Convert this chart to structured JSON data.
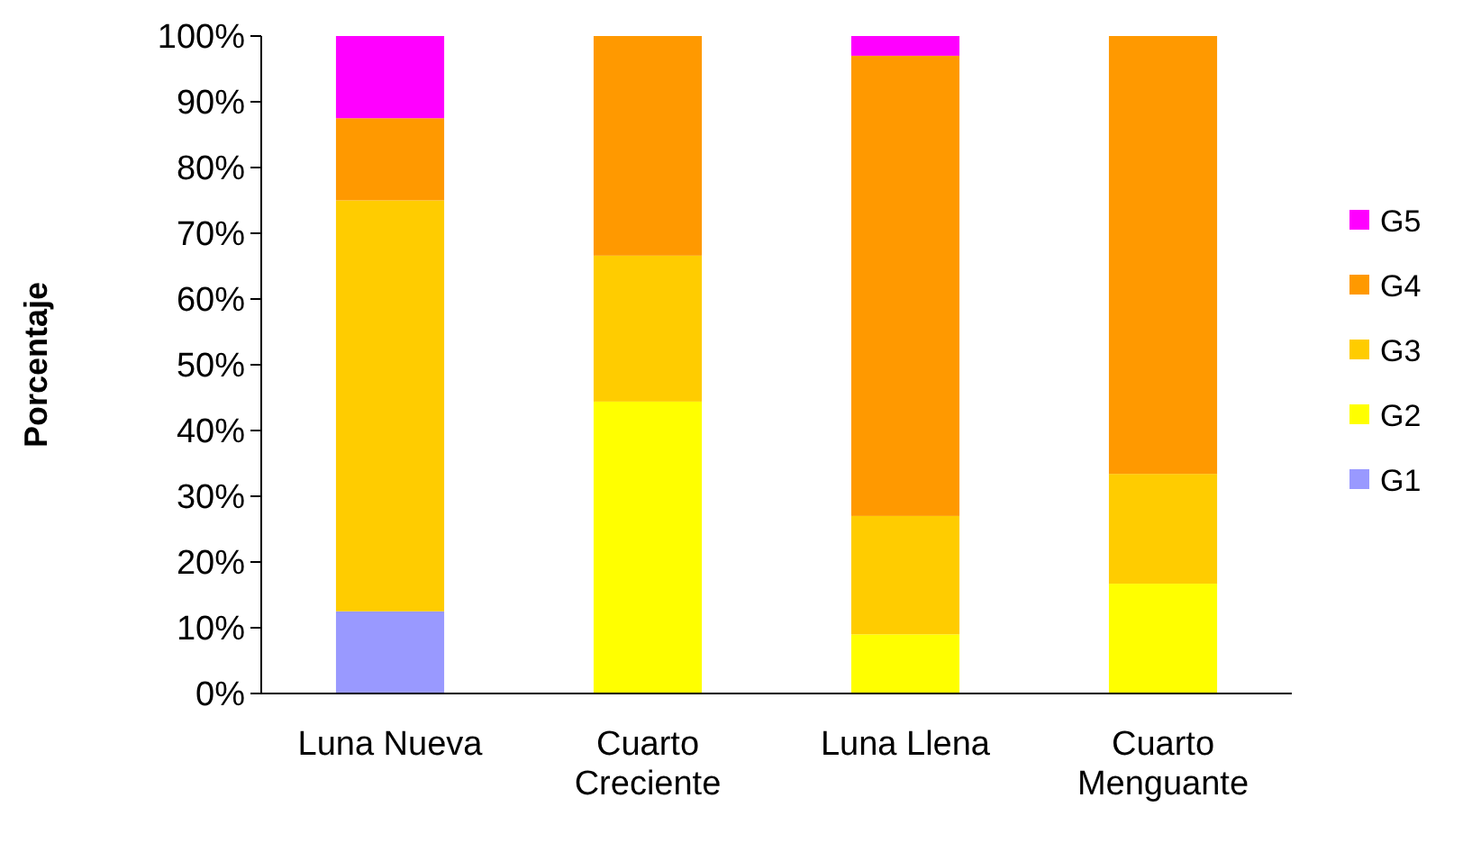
{
  "chart_data": {
    "type": "bar",
    "stacked": true,
    "ylabel": "Porcentaje",
    "categories": [
      "Luna Nueva",
      "Cuarto Creciente",
      "Luna Llena",
      "Cuarto Menguante"
    ],
    "series": [
      {
        "name": "G1",
        "color": "#9999ff",
        "values": [
          12.5,
          0,
          0,
          0
        ]
      },
      {
        "name": "G2",
        "color": "#ffff00",
        "values": [
          0,
          44.4,
          9,
          16.7
        ]
      },
      {
        "name": "G3",
        "color": "#ffcc00",
        "values": [
          62.5,
          22.2,
          18,
          16.7
        ]
      },
      {
        "name": "G4",
        "color": "#ff9900",
        "values": [
          12.5,
          33.4,
          70,
          66.6
        ]
      },
      {
        "name": "G5",
        "color": "#ff00ff",
        "values": [
          12.5,
          0,
          3,
          0
        ]
      }
    ],
    "ylim": [
      0,
      100
    ],
    "yticks": [
      {
        "value": 0,
        "label": "0%"
      },
      {
        "value": 10,
        "label": "10%"
      },
      {
        "value": 20,
        "label": "20%"
      },
      {
        "value": 30,
        "label": "30%"
      },
      {
        "value": 40,
        "label": "40%"
      },
      {
        "value": 50,
        "label": "50%"
      },
      {
        "value": 60,
        "label": "60%"
      },
      {
        "value": 70,
        "label": "70%"
      },
      {
        "value": 80,
        "label": "80%"
      },
      {
        "value": 90,
        "label": "90%"
      },
      {
        "value": 100,
        "label": "100%"
      }
    ],
    "legend": "right"
  }
}
